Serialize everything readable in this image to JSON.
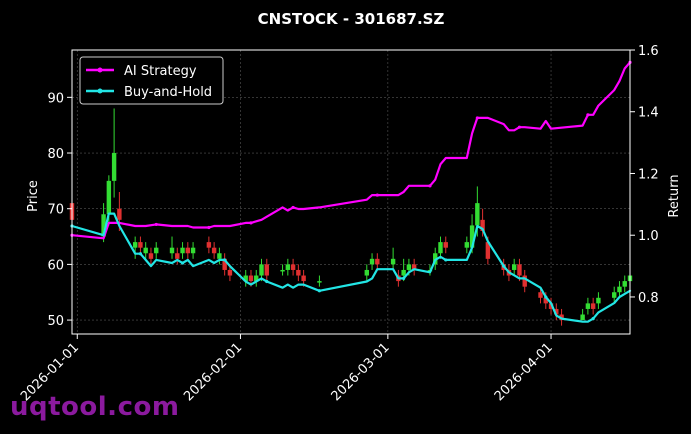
{
  "chart_data": {
    "type": "line",
    "title": "CNSTOCK - 301687.SZ",
    "ylabel_left": "Price",
    "ylabel_right": "Return",
    "ylim_left": [
      47.5,
      98.5
    ],
    "ylim_right": [
      0.68,
      1.6
    ],
    "yticks_left": [
      50,
      60,
      70,
      80,
      90
    ],
    "yticks_right": [
      0.8,
      1.0,
      1.2,
      1.4,
      1.6
    ],
    "ytick_labels_right": [
      "0.8",
      "1.0",
      "1.2",
      "1.4",
      "1.6"
    ],
    "x_start": "2025-12-31",
    "x_end": "2026-04-16",
    "xticks": [
      "2026-01-01",
      "2026-02-01",
      "2026-03-01",
      "2026-04-01"
    ],
    "grid": true,
    "legend": {
      "position": "top-left",
      "entries": [
        "AI Strategy",
        "Buy-and-Hold"
      ]
    },
    "colors": {
      "ai": "#ff00ff",
      "bh": "#22e5e5",
      "up": "#33dd33",
      "down": "#e03030",
      "grid": "#555555"
    },
    "series": [
      {
        "name": "AI Strategy",
        "axis": "right",
        "points": [
          [
            "2025-12-31",
            1.0
          ],
          [
            "2026-01-06",
            0.99
          ],
          [
            "2026-01-07",
            1.04
          ],
          [
            "2026-01-09",
            1.04
          ],
          [
            "2026-01-12",
            1.03
          ],
          [
            "2026-01-14",
            1.03
          ],
          [
            "2026-01-16",
            1.035
          ],
          [
            "2026-01-19",
            1.03
          ],
          [
            "2026-01-20",
            1.03
          ],
          [
            "2026-01-21",
            1.03
          ],
          [
            "2026-01-22",
            1.03
          ],
          [
            "2026-01-23",
            1.025
          ],
          [
            "2026-01-26",
            1.025
          ],
          [
            "2026-01-27",
            1.03
          ],
          [
            "2026-01-28",
            1.03
          ],
          [
            "2026-01-29",
            1.03
          ],
          [
            "2026-01-30",
            1.03
          ],
          [
            "2026-02-02",
            1.04
          ],
          [
            "2026-02-03",
            1.04
          ],
          [
            "2026-02-04",
            1.045
          ],
          [
            "2026-02-05",
            1.05
          ],
          [
            "2026-02-06",
            1.06
          ],
          [
            "2026-02-09",
            1.09
          ],
          [
            "2026-02-10",
            1.08
          ],
          [
            "2026-02-11",
            1.09
          ],
          [
            "2026-02-12",
            1.085
          ],
          [
            "2026-02-13",
            1.085
          ],
          [
            "2026-02-16",
            1.09
          ],
          [
            "2026-02-25",
            1.115
          ],
          [
            "2026-02-26",
            1.13
          ],
          [
            "2026-02-27",
            1.13
          ],
          [
            "2026-03-02",
            1.13
          ],
          [
            "2026-03-03",
            1.13
          ],
          [
            "2026-03-04",
            1.14
          ],
          [
            "2026-03-05",
            1.16
          ],
          [
            "2026-03-06",
            1.16
          ],
          [
            "2026-03-09",
            1.16
          ],
          [
            "2026-03-10",
            1.18
          ],
          [
            "2026-03-11",
            1.23
          ],
          [
            "2026-03-12",
            1.25
          ],
          [
            "2026-03-16",
            1.25
          ],
          [
            "2026-03-17",
            1.33
          ],
          [
            "2026-03-18",
            1.38
          ],
          [
            "2026-03-19",
            1.38
          ],
          [
            "2026-03-20",
            1.38
          ],
          [
            "2026-03-23",
            1.36
          ],
          [
            "2026-03-24",
            1.34
          ],
          [
            "2026-03-25",
            1.34
          ],
          [
            "2026-03-26",
            1.35
          ],
          [
            "2026-03-27",
            1.35
          ],
          [
            "2026-03-30",
            1.345
          ],
          [
            "2026-03-31",
            1.37
          ],
          [
            "2026-04-01",
            1.345
          ],
          [
            "2026-04-07",
            1.355
          ],
          [
            "2026-04-08",
            1.39
          ],
          [
            "2026-04-09",
            1.39
          ],
          [
            "2026-04-10",
            1.42
          ],
          [
            "2026-04-13",
            1.47
          ],
          [
            "2026-04-14",
            1.5
          ],
          [
            "2026-04-15",
            1.54
          ],
          [
            "2026-04-16",
            1.56
          ]
        ]
      },
      {
        "name": "Buy-and-Hold",
        "axis": "right",
        "points": [
          [
            "2025-12-31",
            1.03
          ],
          [
            "2026-01-06",
            1.0
          ],
          [
            "2026-01-07",
            1.07
          ],
          [
            "2026-01-08",
            1.07
          ],
          [
            "2026-01-09",
            1.03
          ],
          [
            "2026-01-12",
            0.94
          ],
          [
            "2026-01-13",
            0.94
          ],
          [
            "2026-01-14",
            0.92
          ],
          [
            "2026-01-15",
            0.9
          ],
          [
            "2026-01-16",
            0.92
          ],
          [
            "2026-01-19",
            0.91
          ],
          [
            "2026-01-20",
            0.92
          ],
          [
            "2026-01-21",
            0.91
          ],
          [
            "2026-01-22",
            0.92
          ],
          [
            "2026-01-23",
            0.9
          ],
          [
            "2026-01-26",
            0.92
          ],
          [
            "2026-01-27",
            0.91
          ],
          [
            "2026-01-28",
            0.92
          ],
          [
            "2026-01-29",
            0.92
          ],
          [
            "2026-01-30",
            0.9
          ],
          [
            "2026-02-02",
            0.85
          ],
          [
            "2026-02-03",
            0.84
          ],
          [
            "2026-02-04",
            0.85
          ],
          [
            "2026-02-05",
            0.86
          ],
          [
            "2026-02-06",
            0.85
          ],
          [
            "2026-02-09",
            0.83
          ],
          [
            "2026-02-10",
            0.84
          ],
          [
            "2026-02-11",
            0.83
          ],
          [
            "2026-02-12",
            0.84
          ],
          [
            "2026-02-13",
            0.84
          ],
          [
            "2026-02-16",
            0.82
          ],
          [
            "2026-02-25",
            0.85
          ],
          [
            "2026-02-26",
            0.86
          ],
          [
            "2026-02-27",
            0.89
          ],
          [
            "2026-03-02",
            0.89
          ],
          [
            "2026-03-03",
            0.86
          ],
          [
            "2026-03-04",
            0.86
          ],
          [
            "2026-03-05",
            0.88
          ],
          [
            "2026-03-06",
            0.89
          ],
          [
            "2026-03-09",
            0.88
          ],
          [
            "2026-03-10",
            0.92
          ],
          [
            "2026-03-11",
            0.93
          ],
          [
            "2026-03-12",
            0.92
          ],
          [
            "2026-03-16",
            0.92
          ],
          [
            "2026-03-17",
            0.96
          ],
          [
            "2026-03-18",
            1.03
          ],
          [
            "2026-03-19",
            1.02
          ],
          [
            "2026-03-20",
            0.98
          ],
          [
            "2026-03-23",
            0.9
          ],
          [
            "2026-03-24",
            0.88
          ],
          [
            "2026-03-25",
            0.87
          ],
          [
            "2026-03-26",
            0.86
          ],
          [
            "2026-03-27",
            0.86
          ],
          [
            "2026-03-30",
            0.83
          ],
          [
            "2026-03-31",
            0.8
          ],
          [
            "2026-04-01",
            0.78
          ],
          [
            "2026-04-02",
            0.74
          ],
          [
            "2026-04-03",
            0.73
          ],
          [
            "2026-04-07",
            0.72
          ],
          [
            "2026-04-08",
            0.72
          ],
          [
            "2026-04-09",
            0.73
          ],
          [
            "2026-04-10",
            0.75
          ],
          [
            "2026-04-13",
            0.78
          ],
          [
            "2026-04-14",
            0.8
          ],
          [
            "2026-04-15",
            0.81
          ],
          [
            "2026-04-16",
            0.82
          ]
        ]
      }
    ],
    "candles": [
      [
        "2025-12-31",
        71,
        68,
        72,
        67
      ],
      [
        "2026-01-06",
        65,
        69,
        71,
        64
      ],
      [
        "2026-01-07",
        69,
        75,
        76,
        67
      ],
      [
        "2026-01-08",
        75,
        80,
        88,
        72
      ],
      [
        "2026-01-09",
        70,
        68,
        73,
        66
      ],
      [
        "2026-01-12",
        63,
        64,
        65,
        61
      ],
      [
        "2026-01-13",
        64,
        63,
        65,
        62
      ],
      [
        "2026-01-14",
        62,
        63,
        64,
        61
      ],
      [
        "2026-01-15",
        62,
        61,
        63,
        60
      ],
      [
        "2026-01-16",
        62,
        63,
        64,
        61
      ],
      [
        "2026-01-19",
        62,
        63,
        65,
        61
      ],
      [
        "2026-01-20",
        62,
        61,
        63,
        60
      ],
      [
        "2026-01-21",
        62,
        63,
        64,
        61
      ],
      [
        "2026-01-22",
        63,
        62,
        64,
        61
      ],
      [
        "2026-01-23",
        62,
        63,
        64,
        61
      ],
      [
        "2026-01-26",
        64,
        63,
        65,
        62
      ],
      [
        "2026-01-27",
        63,
        62,
        64,
        61
      ],
      [
        "2026-01-28",
        61,
        62,
        63,
        60
      ],
      [
        "2026-01-29",
        61,
        59,
        62,
        58
      ],
      [
        "2026-01-30",
        59,
        58,
        60,
        57
      ],
      [
        "2026-02-02",
        57,
        58,
        59,
        56
      ],
      [
        "2026-02-03",
        58,
        57,
        59,
        56
      ],
      [
        "2026-02-04",
        57,
        58,
        59,
        56
      ],
      [
        "2026-02-05",
        58,
        60,
        61,
        57
      ],
      [
        "2026-02-06",
        60,
        58,
        61,
        57
      ],
      [
        "2026-02-09",
        59,
        59,
        60,
        58
      ],
      [
        "2026-02-10",
        59,
        60,
        61,
        58
      ],
      [
        "2026-02-11",
        60,
        59,
        61,
        58
      ],
      [
        "2026-02-12",
        59,
        58,
        60,
        57
      ],
      [
        "2026-02-13",
        58,
        57,
        59,
        56
      ],
      [
        "2026-02-16",
        57,
        57,
        58,
        56
      ],
      [
        "2026-02-25",
        58,
        59,
        60,
        57
      ],
      [
        "2026-02-26",
        60,
        61,
        62,
        59
      ],
      [
        "2026-02-27",
        61,
        60,
        62,
        59
      ],
      [
        "2026-03-02",
        60,
        61,
        63,
        59
      ],
      [
        "2026-03-03",
        58,
        57,
        59,
        56
      ],
      [
        "2026-03-04",
        58,
        59,
        61,
        57
      ],
      [
        "2026-03-05",
        59,
        60,
        61,
        58
      ],
      [
        "2026-03-06",
        60,
        59,
        61,
        58
      ],
      [
        "2026-03-09",
        59,
        59,
        60,
        58
      ],
      [
        "2026-03-10",
        60,
        62,
        63,
        59
      ],
      [
        "2026-03-11",
        62,
        64,
        65,
        61
      ],
      [
        "2026-03-12",
        64,
        63,
        65,
        62
      ],
      [
        "2026-03-16",
        63,
        64,
        65,
        62
      ],
      [
        "2026-03-17",
        63,
        67,
        69,
        62
      ],
      [
        "2026-03-18",
        67,
        71,
        74,
        65
      ],
      [
        "2026-03-19",
        68,
        66,
        70,
        65
      ],
      [
        "2026-03-20",
        64,
        61,
        65,
        60
      ],
      [
        "2026-03-23",
        60,
        59,
        61,
        58
      ],
      [
        "2026-03-24",
        59,
        58,
        60,
        57
      ],
      [
        "2026-03-25",
        59,
        60,
        61,
        58
      ],
      [
        "2026-03-26",
        60,
        58,
        61,
        57
      ],
      [
        "2026-03-27",
        58,
        56,
        59,
        55
      ],
      [
        "2026-03-30",
        55,
        54,
        56,
        53
      ],
      [
        "2026-03-31",
        54,
        53,
        55,
        52
      ],
      [
        "2026-04-01",
        53,
        52,
        54,
        51
      ],
      [
        "2026-04-02",
        52,
        51,
        53,
        50
      ],
      [
        "2026-04-03",
        51,
        50,
        52,
        49
      ],
      [
        "2026-04-07",
        50,
        51,
        52,
        50
      ],
      [
        "2026-04-08",
        52,
        53,
        54,
        51
      ],
      [
        "2026-04-09",
        53,
        52,
        54,
        51
      ],
      [
        "2026-04-10",
        53,
        54,
        55,
        52
      ],
      [
        "2026-04-13",
        54,
        55,
        56,
        53
      ],
      [
        "2026-04-14",
        55,
        56,
        57,
        54
      ],
      [
        "2026-04-15",
        56,
        57,
        58,
        55
      ],
      [
        "2026-04-16",
        57,
        58,
        59,
        56
      ]
    ]
  },
  "watermark": "uqtool.com"
}
